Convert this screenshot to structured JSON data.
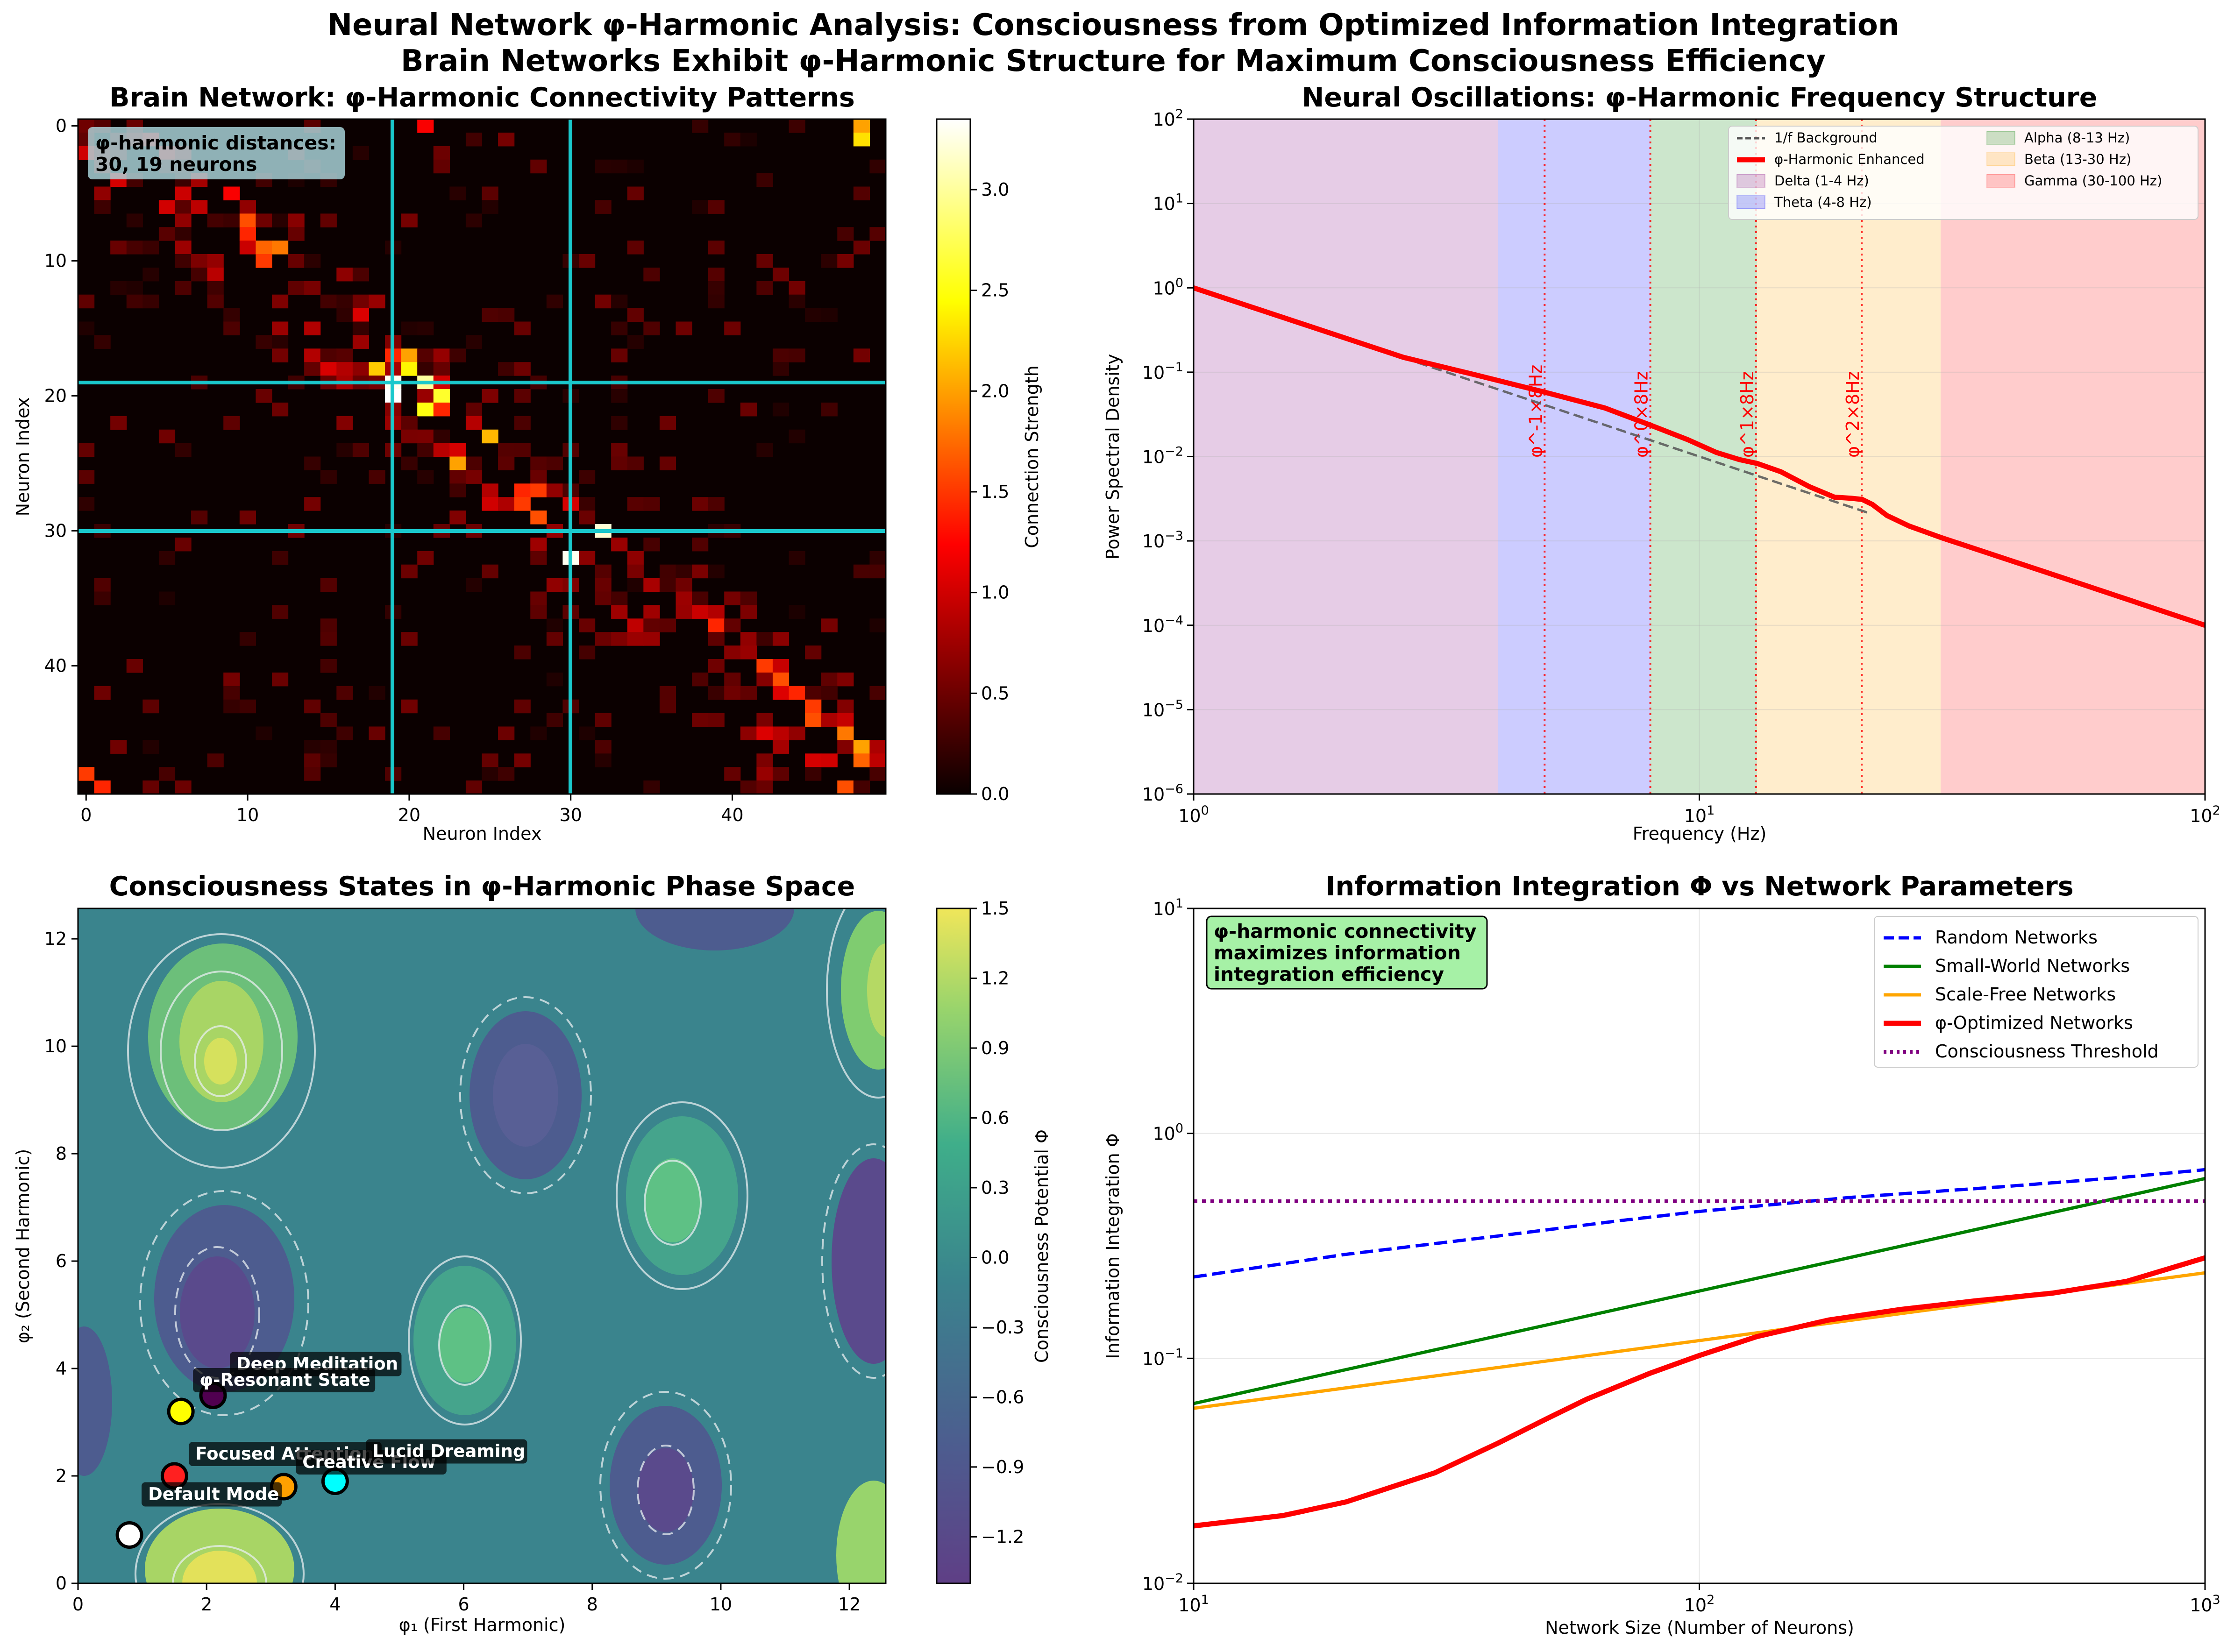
{
  "figure": {
    "suptitle_line1": "Neural Network φ-Harmonic Analysis: Consciousness from Optimized Information Integration",
    "suptitle_line2": "Brain Networks Exhibit φ-Harmonic Structure for Maximum Consciousness Efficiency"
  },
  "chart_data": [
    {
      "type": "heatmap",
      "title": "Brain Network: φ-Harmonic Connectivity Patterns",
      "xlabel": "Neuron Index",
      "ylabel": "Neuron Index",
      "size": 50,
      "xticks": [
        "0",
        "10",
        "20",
        "30",
        "40"
      ],
      "yticks": [
        "0",
        "10",
        "20",
        "30",
        "40"
      ],
      "colorbar": {
        "label": "Connection Strength",
        "range": [
          0,
          3.35
        ],
        "ticks": [
          "0.0",
          "0.5",
          "1.0",
          "1.5",
          "2.0",
          "2.5",
          "3.0"
        ],
        "colormap": "hot"
      },
      "highlight_lines": {
        "neurons": [
          19,
          30
        ],
        "color": "#1ac8cc"
      },
      "annotation": {
        "line1": "φ-harmonic distances:",
        "line2": "30, 19 neurons"
      },
      "strong_cells": [
        {
          "r": 0,
          "c": 21,
          "v": 1.2
        },
        {
          "r": 0,
          "c": 48,
          "v": 2.0
        },
        {
          "r": 1,
          "c": 48,
          "v": 2.3
        },
        {
          "r": 5,
          "c": 9,
          "v": 1.2
        },
        {
          "r": 7,
          "c": 10,
          "v": 1.6
        },
        {
          "r": 8,
          "c": 10,
          "v": 1.4
        },
        {
          "r": 9,
          "c": 11,
          "v": 1.7
        },
        {
          "r": 9,
          "c": 12,
          "v": 1.8
        },
        {
          "r": 10,
          "c": 11,
          "v": 1.5
        },
        {
          "r": 17,
          "c": 19,
          "v": 1.4
        },
        {
          "r": 17,
          "c": 20,
          "v": 2.0
        },
        {
          "r": 18,
          "c": 18,
          "v": 2.2
        },
        {
          "r": 18,
          "c": 20,
          "v": 2.4
        },
        {
          "r": 19,
          "c": 19,
          "v": 3.3
        },
        {
          "r": 19,
          "c": 21,
          "v": 3.0
        },
        {
          "r": 20,
          "c": 19,
          "v": 3.35
        },
        {
          "r": 20,
          "c": 22,
          "v": 2.6
        },
        {
          "r": 21,
          "c": 21,
          "v": 2.5
        },
        {
          "r": 21,
          "c": 22,
          "v": 1.4
        },
        {
          "r": 23,
          "c": 25,
          "v": 2.1
        },
        {
          "r": 25,
          "c": 23,
          "v": 2.0
        },
        {
          "r": 27,
          "c": 27,
          "v": 1.4
        },
        {
          "r": 27,
          "c": 28,
          "v": 1.5
        },
        {
          "r": 28,
          "c": 27,
          "v": 1.5
        },
        {
          "r": 29,
          "c": 28,
          "v": 1.6
        },
        {
          "r": 30,
          "c": 32,
          "v": 3.2
        },
        {
          "r": 32,
          "c": 30,
          "v": 3.3
        },
        {
          "r": 37,
          "c": 39,
          "v": 1.4
        },
        {
          "r": 40,
          "c": 42,
          "v": 1.5
        },
        {
          "r": 41,
          "c": 43,
          "v": 1.6
        },
        {
          "r": 42,
          "c": 44,
          "v": 1.4
        },
        {
          "r": 43,
          "c": 45,
          "v": 1.5
        },
        {
          "r": 44,
          "c": 45,
          "v": 1.6
        },
        {
          "r": 45,
          "c": 47,
          "v": 1.8
        },
        {
          "r": 46,
          "c": 48,
          "v": 2.0
        },
        {
          "r": 47,
          "c": 48,
          "v": 1.7
        },
        {
          "r": 48,
          "c": 0,
          "v": 1.5
        },
        {
          "r": 49,
          "c": 1,
          "v": 1.4
        },
        {
          "r": 49,
          "c": 47,
          "v": 1.6
        }
      ]
    },
    {
      "type": "line",
      "title": "Neural Oscillations: φ-Harmonic Frequency Structure",
      "xlabel": "Frequency (Hz)",
      "ylabel": "Power Spectral Density",
      "xscale": "log",
      "yscale": "log",
      "xlim": [
        1,
        100
      ],
      "ylim": [
        1e-06,
        100
      ],
      "xticks": [
        {
          "v": 1,
          "b": "10",
          "e": "0"
        },
        {
          "v": 10,
          "b": "10",
          "e": "1"
        },
        {
          "v": 100,
          "b": "10",
          "e": "2"
        }
      ],
      "yticks": [
        {
          "v": 1e-06,
          "b": "10",
          "e": "−6"
        },
        {
          "v": 1e-05,
          "b": "10",
          "e": "−5"
        },
        {
          "v": 0.0001,
          "b": "10",
          "e": "−4"
        },
        {
          "v": 0.001,
          "b": "10",
          "e": "−3"
        },
        {
          "v": 0.01,
          "b": "10",
          "e": "−2"
        },
        {
          "v": 0.1,
          "b": "10",
          "e": "−1"
        },
        {
          "v": 1,
          "b": "10",
          "e": "0"
        },
        {
          "v": 10,
          "b": "10",
          "e": "1"
        },
        {
          "v": 100,
          "b": "10",
          "e": "2"
        }
      ],
      "bands": [
        {
          "name": "Delta (1-4 Hz)",
          "from": 1,
          "to": 4,
          "color": "#800080"
        },
        {
          "name": "Theta (4-8 Hz)",
          "from": 4,
          "to": 8,
          "color": "#0000ff"
        },
        {
          "name": "Alpha (8-13 Hz)",
          "from": 8,
          "to": 13,
          "color": "#008000"
        },
        {
          "name": "Beta (13-30 Hz)",
          "from": 13,
          "to": 30,
          "color": "#ffa500"
        },
        {
          "name": "Gamma (30-100 Hz)",
          "from": 30,
          "to": 100,
          "color": "#ff0000"
        }
      ],
      "series": [
        {
          "name": "1/f Background",
          "style": "dashed",
          "color": "#555555",
          "x": [
            2.6,
            21.5
          ],
          "y": [
            0.148,
            0.00217
          ]
        },
        {
          "name": "φ-Harmonic Enhanced",
          "style": "solid",
          "color": "#ff0000",
          "x": [
            1,
            2.6,
            3.6,
            4.94,
            6.5,
            8.0,
            9.5,
            10.8,
            12.0,
            13.0,
            14.5,
            16.5,
            18.5,
            20.0,
            21.0,
            22.0,
            23.5,
            26.0,
            30.0,
            50.0,
            100.0
          ],
          "y": [
            1.0,
            0.15,
            0.0933,
            0.058,
            0.0377,
            0.0236,
            0.0158,
            0.0112,
            0.0092,
            0.0083,
            0.0066,
            0.0044,
            0.0033,
            0.0032,
            0.0031,
            0.0027,
            0.002,
            0.0015,
            0.0011,
            0.0004,
            0.0001
          ]
        }
      ],
      "markers": [
        {
          "label": "φ^-1×8Hz",
          "x": 4.944
        },
        {
          "label": "φ^0×8Hz",
          "x": 8.0
        },
        {
          "label": "φ^1×8Hz",
          "x": 12.944
        },
        {
          "label": "φ^2×8Hz",
          "x": 20.944
        }
      ],
      "legend": {
        "placement": "top-right"
      }
    },
    {
      "type": "contour",
      "title": "Consciousness States in φ-Harmonic Phase Space",
      "xlabel": "φ₁ (First Harmonic)",
      "ylabel": "φ₂ (Second Harmonic)",
      "xlim": [
        0,
        12.566
      ],
      "ylim": [
        0,
        12.566
      ],
      "xticks": [
        0,
        2,
        4,
        6,
        8,
        10,
        12
      ],
      "yticks": [
        0,
        2,
        4,
        6,
        8,
        10,
        12
      ],
      "colorbar": {
        "label": "Consciousness Potential Φ",
        "range": [
          -1.4,
          1.5
        ],
        "ticks": [
          "1.5",
          "1.2",
          "0.9",
          "0.6",
          "0.3",
          "0.0",
          "−0.3",
          "−0.6",
          "−0.9",
          "−1.2"
        ],
        "colormap": "viridis"
      },
      "states": [
        {
          "name": "Default Mode",
          "x": 0.8,
          "y": 0.9,
          "color": "#ffffff"
        },
        {
          "name": "Focused Attention",
          "x": 1.5,
          "y": 2.0,
          "color": "#ff2020"
        },
        {
          "name": "Creative Flow",
          "x": 3.2,
          "y": 1.8,
          "color": "#ffa000"
        },
        {
          "name": "Deep Meditation",
          "x": 2.1,
          "y": 3.5,
          "color": "#500050"
        },
        {
          "name": "Lucid Dreaming",
          "x": 4.0,
          "y": 1.9,
          "color": "#00ffff"
        },
        {
          "name": "φ-Resonant State",
          "x": 1.6,
          "y": 3.2,
          "color": "#ffff00"
        }
      ]
    },
    {
      "type": "line",
      "title": "Information Integration Φ vs Network Parameters",
      "xlabel": "Network Size (Number of Neurons)",
      "ylabel": "Information Integration Φ",
      "xscale": "log",
      "yscale": "log",
      "xlim": [
        10,
        1000
      ],
      "ylim": [
        0.01,
        10
      ],
      "xticks": [
        {
          "v": 10,
          "b": "10",
          "e": "1"
        },
        {
          "v": 100,
          "b": "10",
          "e": "2"
        },
        {
          "v": 1000,
          "b": "10",
          "e": "3"
        }
      ],
      "yticks": [
        {
          "v": 0.01,
          "b": "10",
          "e": "−2"
        },
        {
          "v": 0.1,
          "b": "10",
          "e": "−1"
        },
        {
          "v": 1,
          "b": "10",
          "e": "0"
        },
        {
          "v": 10,
          "b": "10",
          "e": "1"
        }
      ],
      "series": [
        {
          "name": "Random Networks",
          "style": "dashed",
          "color": "#0000ff",
          "x": [
            10,
            20,
            40,
            70,
            100,
            200,
            400,
            700,
            1000
          ],
          "y": [
            0.23,
            0.29,
            0.35,
            0.41,
            0.45,
            0.52,
            0.58,
            0.64,
            0.69
          ]
        },
        {
          "name": "Small-World Networks",
          "style": "solid",
          "color": "#008000",
          "x": [
            10,
            1000
          ],
          "y": [
            0.063,
            0.63
          ]
        },
        {
          "name": "Scale-Free Networks",
          "style": "solid",
          "color": "#ffa500",
          "x": [
            10,
            1000
          ],
          "y": [
            0.06,
            0.24
          ]
        },
        {
          "name": "φ-Optimized Networks",
          "style": "solid",
          "color": "#ff0000",
          "x": [
            10,
            15,
            20,
            30,
            40,
            50,
            60,
            80,
            100,
            130,
            180,
            250,
            350,
            500,
            700,
            1000
          ],
          "y": [
            0.018,
            0.02,
            0.023,
            0.031,
            0.042,
            0.054,
            0.066,
            0.086,
            0.103,
            0.125,
            0.148,
            0.165,
            0.18,
            0.195,
            0.22,
            0.28
          ]
        },
        {
          "name": "Consciousness Threshold",
          "style": "dotted",
          "color": "#800080",
          "x": [
            10,
            1000
          ],
          "y": [
            0.5,
            0.5
          ]
        }
      ],
      "annotation": {
        "line1": "φ-harmonic connectivity",
        "line2": "maximizes information",
        "line3": "integration efficiency"
      },
      "legend": {
        "placement": "top-right"
      }
    }
  ]
}
